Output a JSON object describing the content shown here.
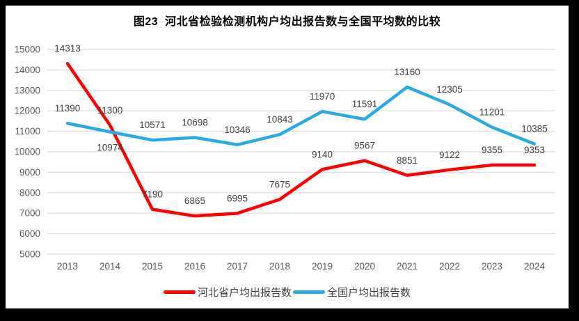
{
  "title": "图23  河北省检验检测机构户均出报告数与全国平均数的比较",
  "chart_data": {
    "type": "line",
    "title": "图23  河北省检验检测机构户均出报告数与全国平均数的比较",
    "categories": [
      "2013",
      "2014",
      "2015",
      "2016",
      "2017",
      "2018",
      "2019",
      "2020",
      "2021",
      "2022",
      "2023",
      "2024"
    ],
    "series": [
      {
        "name": "河北省户均出报告数",
        "color": "#fe0000",
        "values": [
          14313,
          11300,
          7190,
          6865,
          6995,
          7675,
          9140,
          9567,
          8851,
          9122,
          9355,
          9353
        ],
        "below_label_indices": []
      },
      {
        "name": "全国户均出报告数",
        "color": "#29abe2",
        "values": [
          11390,
          10974,
          10571,
          10698,
          10346,
          10843,
          11970,
          11591,
          13160,
          12305,
          11201,
          10385
        ],
        "below_label_indices": [
          1
        ]
      }
    ],
    "ylim": [
      5000,
      15000
    ],
    "ytick_step": 1000,
    "yticks": [
      5000,
      6000,
      7000,
      8000,
      9000,
      10000,
      11000,
      12000,
      13000,
      14000,
      15000
    ],
    "grid": true,
    "legend_position": "bottom",
    "colors": {
      "gridline": "#e0e0e0",
      "axis_text": "#595959",
      "data_label": "#404040",
      "frame": "#000000",
      "background": "#ffffff"
    }
  }
}
